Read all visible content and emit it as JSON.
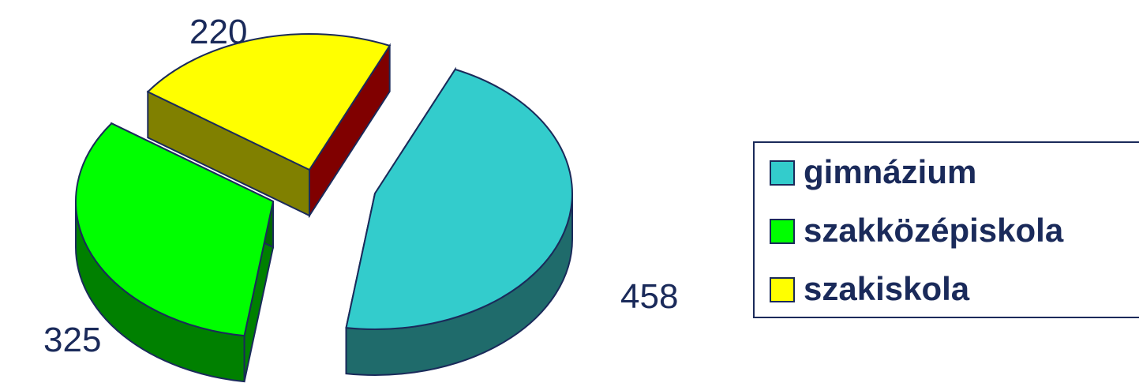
{
  "chart_data": {
    "type": "pie",
    "categories": [
      "gimnázium",
      "szakközépiskola",
      "szakiskola"
    ],
    "values": [
      458,
      325,
      220
    ],
    "colors": {
      "gimnázium": "#33cccc",
      "szakközépiskola": "#00ff00",
      "szakiskola": "#ffff00"
    },
    "legend_placement": "right",
    "style": "3d-exploded"
  }
}
